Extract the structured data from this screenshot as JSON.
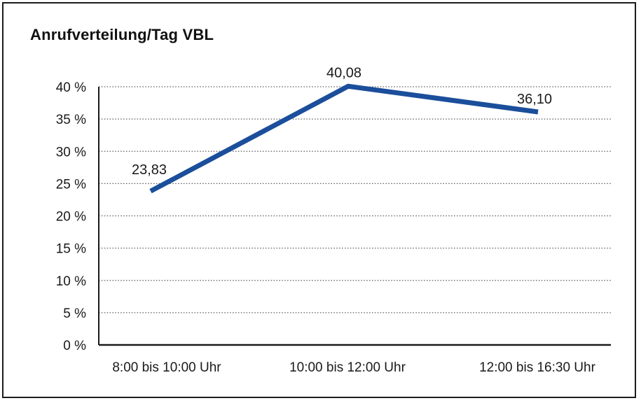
{
  "title": "Anrufverteilung/Tag VBL",
  "colors": {
    "background": "#ffffff",
    "border": "#1c1c1c",
    "axis": "#1a1a1a",
    "gridline": "#5a5a5a",
    "line": "#1b4e9b",
    "text": "#1a1a1a"
  },
  "chart_data": {
    "type": "line",
    "title": "Anrufverteilung/Tag VBL",
    "categories": [
      "8:00 bis 10:00 Uhr",
      "10:00 bis 12:00 Uhr",
      "12:00 bis 16:30 Uhr"
    ],
    "values": [
      23.83,
      40.08,
      36.1
    ],
    "data_labels": [
      "23,83",
      "40,08",
      "36,10"
    ],
    "series_name": "Anrufverteilung",
    "xlabel": "",
    "ylabel": "",
    "ylim": [
      0,
      40
    ],
    "ytick_step": 5,
    "ytick_labels": [
      "0 %",
      "5 %",
      "10 %",
      "15 %",
      "20 %",
      "25 %",
      "30 %",
      "35 %",
      "40 %"
    ],
    "grid": "horizontal-dotted",
    "legend": "none",
    "decimal_separator": ","
  }
}
